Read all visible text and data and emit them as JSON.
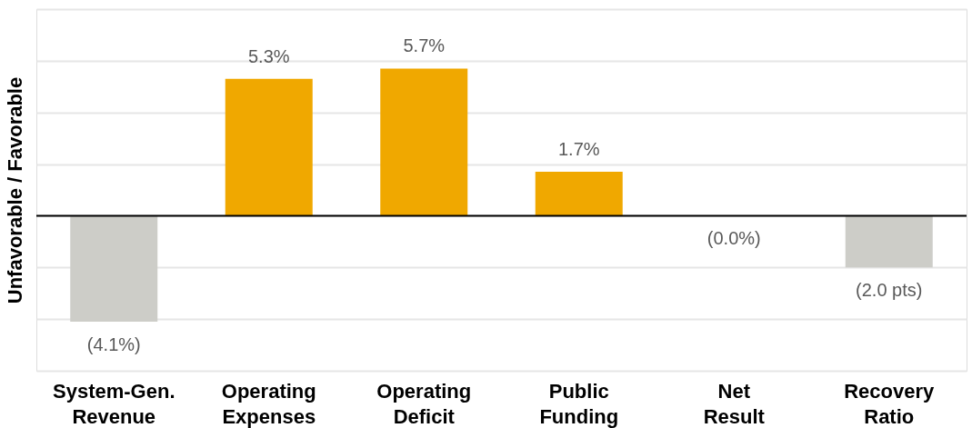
{
  "chart_data": {
    "type": "bar",
    "ylabel": "Unfavorable / Favorable",
    "categories": [
      "System-Gen. Revenue",
      "Operating Expenses",
      "Operating Deficit",
      "Public Funding",
      "Net Result",
      "Recovery Ratio"
    ],
    "values": [
      -4.1,
      5.3,
      5.7,
      1.7,
      0.0,
      -2.0
    ],
    "colors": [
      "#cdcdc8",
      "#f0a800",
      "#f0a800",
      "#f0a800",
      "#f0a800",
      "#cdcdc8"
    ],
    "value_labels": [
      "(4.1%)",
      "5.3%",
      "5.7%",
      "1.7%",
      "(0.0%)",
      "(2.0 pts)"
    ],
    "ylim": [
      -6,
      8
    ],
    "yticks": [
      {
        "value": -6,
        "label": null
      },
      {
        "value": -4,
        "label": null
      },
      {
        "value": -2,
        "label": null
      },
      {
        "value": 0,
        "label": null
      },
      {
        "value": 2,
        "label": null
      },
      {
        "value": 4,
        "label": null
      },
      {
        "value": 6,
        "label": null
      },
      {
        "value": 8,
        "label": null
      }
    ],
    "grid": true,
    "ref_lines": [
      {
        "axis": "y",
        "value": 0,
        "label": null,
        "color": "#000000"
      }
    ]
  }
}
